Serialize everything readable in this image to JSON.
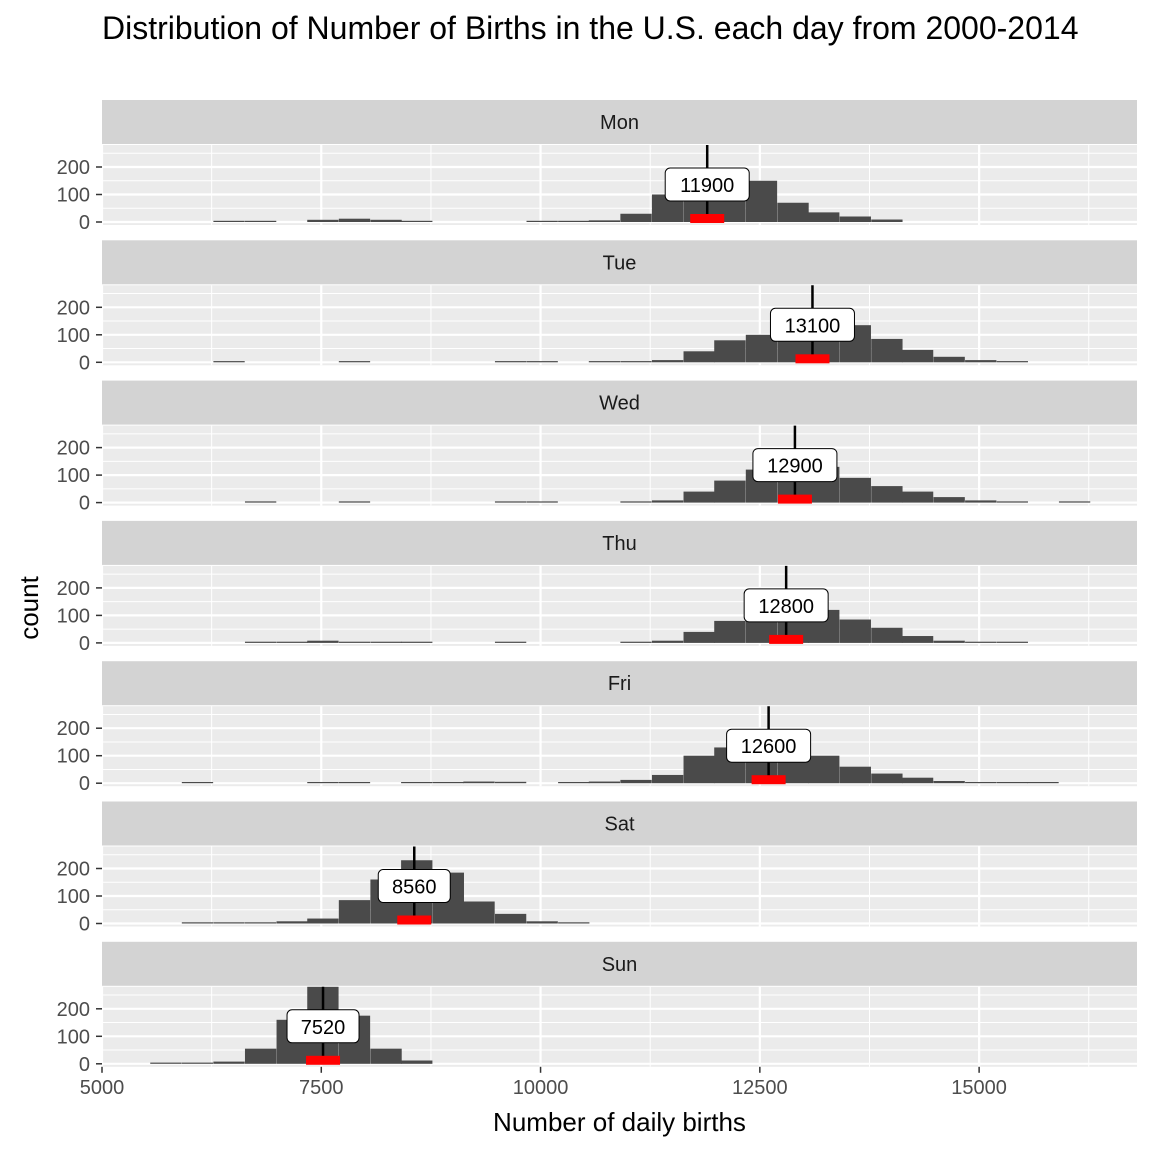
{
  "chart_data": {
    "type": "bar",
    "title": "Distribution of Number of Births in the U.S. each day from 2000-2014",
    "xlabel": "Number of daily births",
    "ylabel": "count",
    "xlim": [
      5000,
      16800
    ],
    "ylim": [
      0,
      280
    ],
    "x_ticks": [
      5000,
      7500,
      10000,
      12500,
      15000
    ],
    "y_ticks": [
      0,
      100,
      200
    ],
    "bin_width": 357,
    "grid": true,
    "facets": [
      {
        "label": "Mon",
        "median": 11900,
        "median_label": "11900",
        "bins": [
          [
            6270,
            3
          ],
          [
            6630,
            1
          ],
          [
            7340,
            8
          ],
          [
            7700,
            12
          ],
          [
            8060,
            8
          ],
          [
            8410,
            3
          ],
          [
            9840,
            2
          ],
          [
            10200,
            3
          ],
          [
            10550,
            6
          ],
          [
            10910,
            30
          ],
          [
            11270,
            100
          ],
          [
            11630,
            140
          ],
          [
            11980,
            155
          ],
          [
            12340,
            150
          ],
          [
            12700,
            70
          ],
          [
            13050,
            35
          ],
          [
            13410,
            20
          ],
          [
            13770,
            9
          ]
        ]
      },
      {
        "label": "Tue",
        "median": 13100,
        "median_label": "13100",
        "bins": [
          [
            6270,
            2
          ],
          [
            7700,
            2
          ],
          [
            9480,
            2
          ],
          [
            9840,
            2
          ],
          [
            10550,
            3
          ],
          [
            10910,
            4
          ],
          [
            11270,
            8
          ],
          [
            11630,
            40
          ],
          [
            11980,
            80
          ],
          [
            12340,
            100
          ],
          [
            12700,
            130
          ],
          [
            13050,
            160
          ],
          [
            13410,
            135
          ],
          [
            13770,
            85
          ],
          [
            14120,
            45
          ],
          [
            14480,
            20
          ],
          [
            14840,
            8
          ],
          [
            15200,
            3
          ]
        ]
      },
      {
        "label": "Wed",
        "median": 12900,
        "median_label": "12900",
        "bins": [
          [
            6630,
            2
          ],
          [
            7700,
            2
          ],
          [
            9480,
            2
          ],
          [
            9840,
            2
          ],
          [
            10910,
            3
          ],
          [
            11270,
            8
          ],
          [
            11630,
            40
          ],
          [
            11980,
            80
          ],
          [
            12340,
            120
          ],
          [
            12700,
            140
          ],
          [
            13050,
            130
          ],
          [
            13410,
            90
          ],
          [
            13770,
            60
          ],
          [
            14120,
            40
          ],
          [
            14480,
            20
          ],
          [
            14840,
            8
          ],
          [
            15200,
            3
          ],
          [
            15910,
            2
          ]
        ]
      },
      {
        "label": "Thu",
        "median": 12800,
        "median_label": "12800",
        "bins": [
          [
            6630,
            2
          ],
          [
            6990,
            3
          ],
          [
            7340,
            8
          ],
          [
            7700,
            2
          ],
          [
            8060,
            2
          ],
          [
            8410,
            3
          ],
          [
            9480,
            2
          ],
          [
            10910,
            3
          ],
          [
            11270,
            8
          ],
          [
            11630,
            40
          ],
          [
            11980,
            80
          ],
          [
            12340,
            125
          ],
          [
            12700,
            130
          ],
          [
            13050,
            120
          ],
          [
            13410,
            85
          ],
          [
            13770,
            55
          ],
          [
            14120,
            25
          ],
          [
            14480,
            8
          ],
          [
            14840,
            3
          ],
          [
            15200,
            2
          ]
        ]
      },
      {
        "label": "Fri",
        "median": 12600,
        "median_label": "12600",
        "bins": [
          [
            5910,
            3
          ],
          [
            7340,
            3
          ],
          [
            7700,
            2
          ],
          [
            8410,
            3
          ],
          [
            8770,
            3
          ],
          [
            9120,
            6
          ],
          [
            9480,
            5
          ],
          [
            10200,
            2
          ],
          [
            10550,
            6
          ],
          [
            10910,
            12
          ],
          [
            11270,
            30
          ],
          [
            11630,
            100
          ],
          [
            11980,
            130
          ],
          [
            12340,
            140
          ],
          [
            12700,
            140
          ],
          [
            13050,
            100
          ],
          [
            13410,
            60
          ],
          [
            13770,
            35
          ],
          [
            14120,
            20
          ],
          [
            14480,
            8
          ],
          [
            14840,
            3
          ],
          [
            15200,
            3
          ],
          [
            15550,
            3
          ]
        ]
      },
      {
        "label": "Sat",
        "median": 8560,
        "median_label": "8560",
        "bins": [
          [
            5910,
            2
          ],
          [
            6270,
            3
          ],
          [
            6630,
            3
          ],
          [
            6990,
            8
          ],
          [
            7340,
            18
          ],
          [
            7700,
            85
          ],
          [
            8060,
            160
          ],
          [
            8410,
            230
          ],
          [
            8770,
            185
          ],
          [
            9120,
            80
          ],
          [
            9480,
            35
          ],
          [
            9840,
            8
          ],
          [
            10200,
            2
          ]
        ]
      },
      {
        "label": "Sun",
        "median": 7520,
        "median_label": "7520",
        "bins": [
          [
            5550,
            2
          ],
          [
            5910,
            2
          ],
          [
            6270,
            8
          ],
          [
            6630,
            55
          ],
          [
            6990,
            160
          ],
          [
            7340,
            280
          ],
          [
            7700,
            175
          ],
          [
            8060,
            55
          ],
          [
            8410,
            12
          ]
        ]
      }
    ]
  },
  "colors": {
    "panel_bg": "#ebebeb",
    "strip_bg": "#d3d3d3",
    "grid": "#ffffff",
    "bar": "#4a4a4a",
    "median_line": "#000000",
    "iqr_mark": "#ff0000",
    "text": "#4d4d4d"
  }
}
